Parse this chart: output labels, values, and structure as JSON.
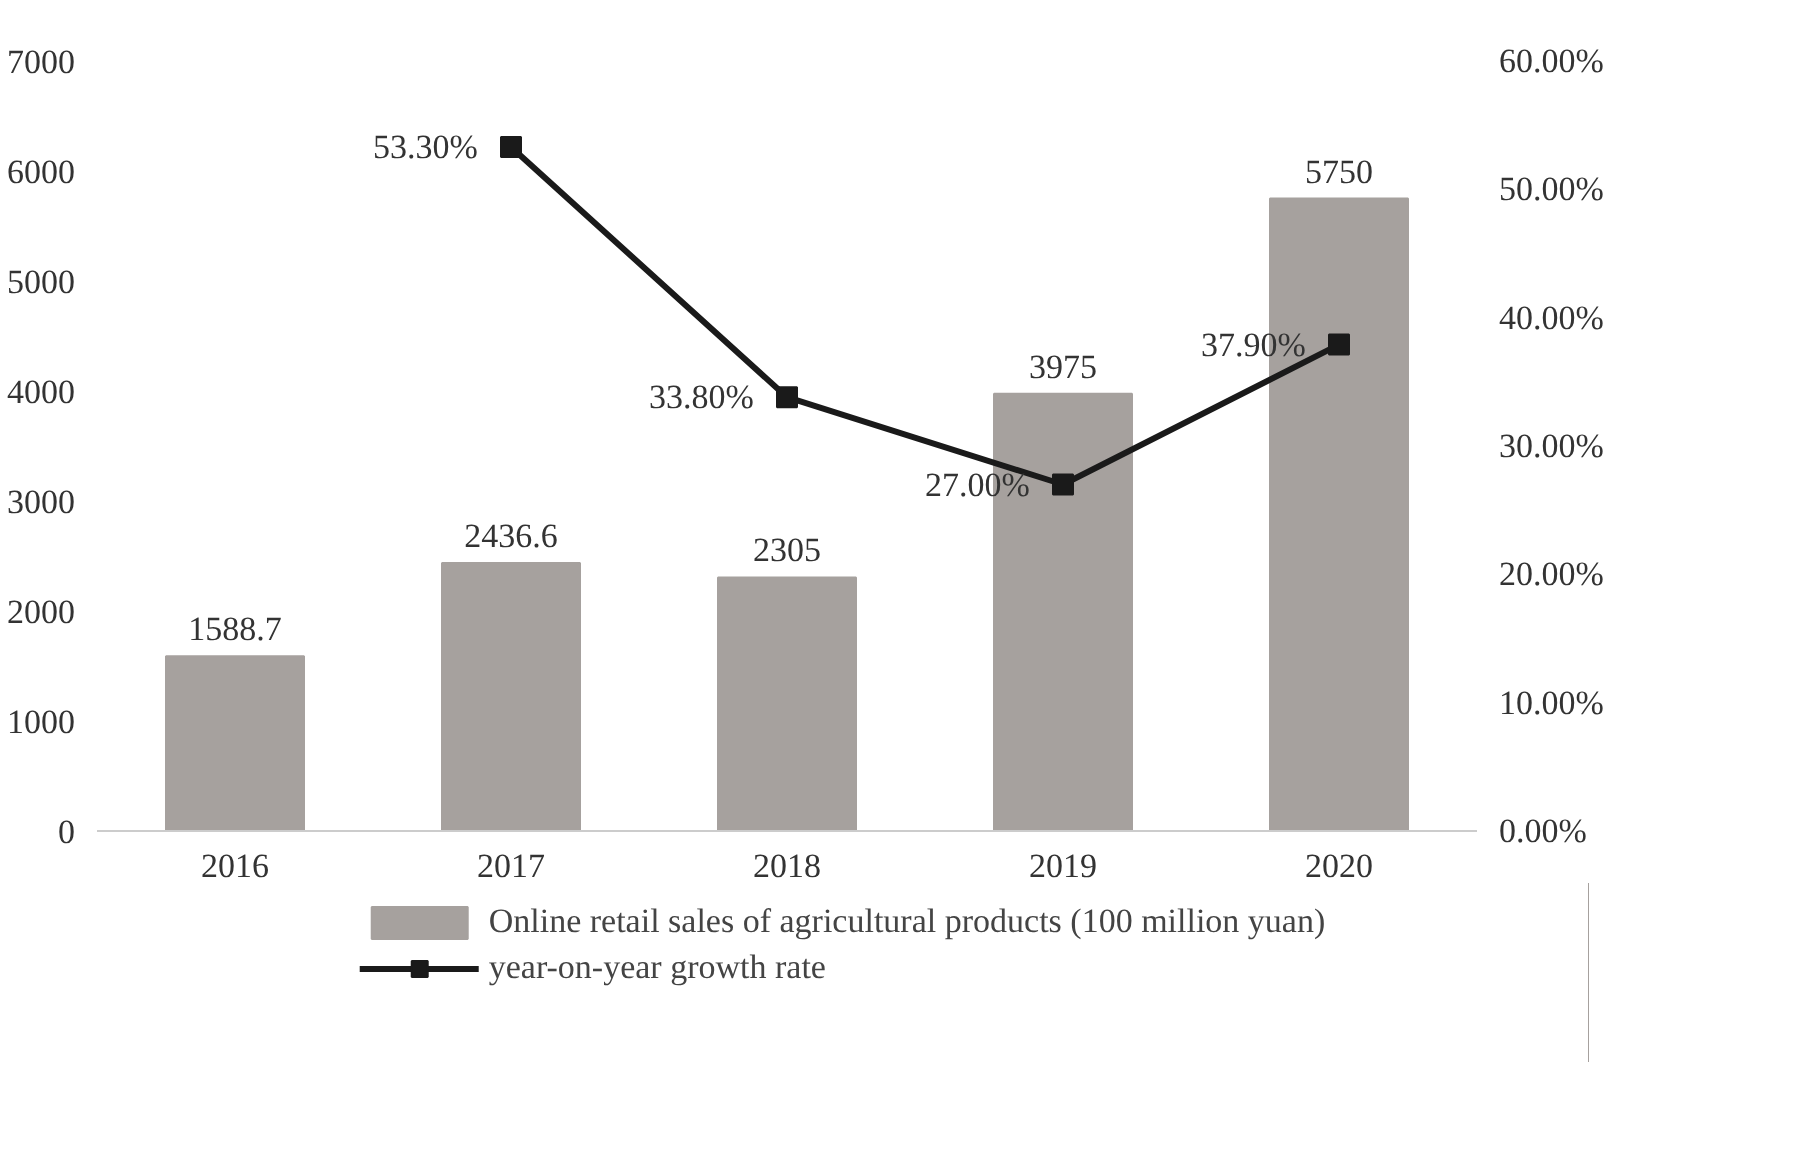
{
  "chart_data": {
    "type": "bar",
    "categories": [
      "2016",
      "2017",
      "2018",
      "2019",
      "2020"
    ],
    "series": [
      {
        "name": "Online retail sales of agricultural products (100 million yuan)",
        "color": "#a6a19e",
        "values": [
          1588.7,
          2436.6,
          2305,
          3975,
          5750
        ],
        "value_labels": [
          "1588.7",
          "2436.6",
          "2305",
          "3975",
          "5750"
        ]
      },
      {
        "name": "year-on-year growth rate",
        "type": "line",
        "axis": "y2",
        "color": "#1a1a1a",
        "values": [
          null,
          53.3,
          33.8,
          27.0,
          37.9
        ],
        "value_labels": [
          null,
          "53.30%",
          "33.80%",
          "27.00%",
          "37.90%"
        ],
        "marker": "square"
      }
    ],
    "ylim": [
      0,
      7000
    ],
    "yticks": [
      0,
      1000,
      2000,
      3000,
      4000,
      5000,
      6000,
      7000
    ],
    "y2lim": [
      0,
      60
    ],
    "y2ticks": [
      {
        "value": 0,
        "label": "0.00%"
      },
      {
        "value": 10,
        "label": "10.00%"
      },
      {
        "value": 20,
        "label": "20.00%"
      },
      {
        "value": 30,
        "label": "30.00%"
      },
      {
        "value": 40,
        "label": "40.00%"
      },
      {
        "value": 50,
        "label": "50.00%"
      },
      {
        "value": 60,
        "label": "60.00%"
      }
    ],
    "grid": false,
    "legend": "bottom"
  }
}
